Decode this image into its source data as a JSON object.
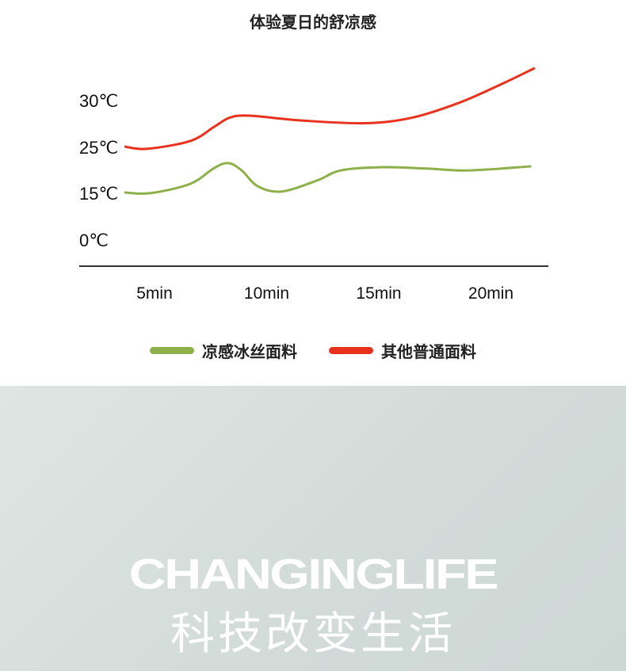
{
  "chart_data": {
    "type": "line",
    "title": "体验夏日的舒凉感",
    "xlabel": "",
    "ylabel": "",
    "x_ticks": [
      {
        "value": 5,
        "label": "5min"
      },
      {
        "value": 10,
        "label": "10min"
      },
      {
        "value": 15,
        "label": "15min"
      },
      {
        "value": 20,
        "label": "20min"
      }
    ],
    "y_ticks": [
      {
        "value": 0,
        "label": "0℃"
      },
      {
        "value": 15,
        "label": "15℃"
      },
      {
        "value": 25,
        "label": "25℃"
      },
      {
        "value": 30,
        "label": "30℃"
      }
    ],
    "grid": false,
    "legend_position": "bottom",
    "series": [
      {
        "name": "凉感冰丝面料",
        "color": "#8db04a",
        "x": [
          3.66,
          4.82,
          6.6,
          7.65,
          8.29,
          8.89,
          9.59,
          10.65,
          12.24,
          13.3,
          15.07,
          17.2,
          18.96,
          21.8
        ],
        "y": [
          15,
          14.8,
          16.9,
          20.3,
          21.4,
          19.8,
          16.4,
          15.2,
          17.6,
          19.8,
          20.5,
          20.2,
          19.8,
          20.7
        ]
      },
      {
        "name": "其他普通面料",
        "color": "#e8321e",
        "x": [
          3.66,
          4.65,
          6.6,
          7.65,
          8.36,
          9.24,
          11.5,
          14.4,
          16.5,
          18.6,
          20.4,
          21.96
        ],
        "y": [
          25,
          24.5,
          25.6,
          27.1,
          28.1,
          28.3,
          27.8,
          27.5,
          28.1,
          29.7,
          31.6,
          33.4
        ]
      }
    ]
  },
  "banner": {
    "english": "CHANGINGLIFE",
    "chinese": "科技改变生活"
  }
}
